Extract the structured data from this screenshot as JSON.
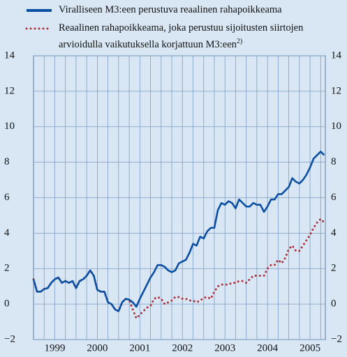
{
  "chart_data": {
    "type": "line",
    "x": [
      1999.0,
      1999.083,
      1999.167,
      1999.25,
      1999.333,
      1999.417,
      1999.5,
      1999.583,
      1999.667,
      1999.75,
      1999.833,
      1999.917,
      2000.0,
      2000.083,
      2000.167,
      2000.25,
      2000.333,
      2000.417,
      2000.5,
      2000.583,
      2000.667,
      2000.75,
      2000.833,
      2000.917,
      2001.0,
      2001.083,
      2001.167,
      2001.25,
      2001.333,
      2001.417,
      2001.5,
      2001.583,
      2001.667,
      2001.75,
      2001.833,
      2001.917,
      2002.0,
      2002.083,
      2002.167,
      2002.25,
      2002.333,
      2002.417,
      2002.5,
      2002.583,
      2002.667,
      2002.75,
      2002.833,
      2002.917,
      2003.0,
      2003.083,
      2003.167,
      2003.25,
      2003.333,
      2003.417,
      2003.5,
      2003.583,
      2003.667,
      2003.75,
      2003.833,
      2003.917,
      2004.0,
      2004.083,
      2004.167,
      2004.25,
      2004.333,
      2004.417,
      2004.5,
      2004.583,
      2004.667,
      2004.75,
      2004.833,
      2004.917,
      2005.0,
      2005.083,
      2005.167,
      2005.25,
      2005.333,
      2005.417,
      2005.5,
      2005.583,
      2005.667,
      2005.75,
      2005.833
    ],
    "series": [
      {
        "name": "Viralliseen M3:een perustuva reaalinen rahapoikkeama",
        "color": "#0b4fa3",
        "style": "solid",
        "values": [
          1.4,
          0.7,
          0.7,
          0.85,
          0.9,
          1.2,
          1.4,
          1.5,
          1.2,
          1.3,
          1.2,
          1.3,
          0.9,
          1.3,
          1.4,
          1.6,
          1.9,
          1.6,
          0.8,
          0.7,
          0.7,
          0.1,
          0.0,
          -0.3,
          -0.4,
          0.1,
          0.3,
          0.25,
          0.1,
          -0.15,
          0.3,
          0.7,
          1.1,
          1.5,
          1.8,
          2.2,
          2.2,
          2.1,
          1.9,
          1.8,
          1.9,
          2.3,
          2.4,
          2.5,
          2.9,
          3.4,
          3.3,
          3.8,
          3.7,
          4.1,
          4.3,
          4.3,
          5.3,
          5.7,
          5.6,
          5.8,
          5.7,
          5.4,
          5.9,
          5.7,
          5.5,
          5.5,
          5.7,
          5.6,
          5.6,
          5.2,
          5.5,
          5.9,
          5.9,
          6.2,
          6.2,
          6.4,
          6.6,
          7.1,
          6.9,
          6.8,
          7.0,
          7.3,
          7.7,
          8.2,
          8.4,
          8.6,
          8.4
        ]
      },
      {
        "name": "Reaalinen rahapoikkeama, joka perustuu sijoitusten siirtojen arvioidulla vaikutuksella korjattuun M3:een",
        "note": "2)",
        "color": "#b0303a",
        "style": "dotted",
        "values": [
          1.4,
          0.7,
          0.7,
          0.85,
          0.9,
          1.2,
          1.4,
          1.5,
          1.2,
          1.3,
          1.2,
          1.3,
          0.9,
          1.3,
          1.4,
          1.6,
          1.9,
          1.6,
          0.8,
          0.7,
          0.7,
          0.1,
          0.0,
          -0.3,
          -0.4,
          0.1,
          0.3,
          0.2,
          -0.3,
          -0.8,
          -0.6,
          -0.4,
          -0.2,
          -0.1,
          0.3,
          0.4,
          0.3,
          0.0,
          0.1,
          0.2,
          0.4,
          0.4,
          0.3,
          0.3,
          0.2,
          0.2,
          0.1,
          0.2,
          0.35,
          0.4,
          0.3,
          0.7,
          1.0,
          1.1,
          1.1,
          1.1,
          1.2,
          1.2,
          1.3,
          1.3,
          1.2,
          1.4,
          1.6,
          1.6,
          1.6,
          1.6,
          2.0,
          2.2,
          2.2,
          2.5,
          2.3,
          2.6,
          3.1,
          3.3,
          3.0,
          3.0,
          3.3,
          3.6,
          3.9,
          4.3,
          4.6,
          4.8,
          4.6
        ]
      }
    ],
    "xlim": [
      1999.0,
      2005.86
    ],
    "xticks": [
      {
        "value": 1999.5,
        "label": "1999"
      },
      {
        "value": 2000.5,
        "label": "2000"
      },
      {
        "value": 2001.5,
        "label": "2001"
      },
      {
        "value": 2002.5,
        "label": "2002"
      },
      {
        "value": 2003.5,
        "label": "2003"
      },
      {
        "value": 2004.5,
        "label": "2004"
      },
      {
        "value": 2005.5,
        "label": "2005"
      }
    ],
    "xgrid": [
      1999.25,
      1999.5,
      1999.75,
      2000.0,
      2000.25,
      2000.5,
      2000.75,
      2001.0,
      2001.25,
      2001.5,
      2001.75,
      2002.0,
      2002.25,
      2002.5,
      2002.75,
      2003.0,
      2003.25,
      2003.5,
      2003.75,
      2004.0,
      2004.25,
      2004.5,
      2004.75,
      2005.0,
      2005.25,
      2005.5,
      2005.75
    ],
    "ylim": [
      -2,
      14
    ],
    "yticks": [
      {
        "value": -2,
        "label": "−2"
      },
      0,
      2,
      4,
      6,
      8,
      10,
      12,
      14
    ],
    "grid": true
  }
}
